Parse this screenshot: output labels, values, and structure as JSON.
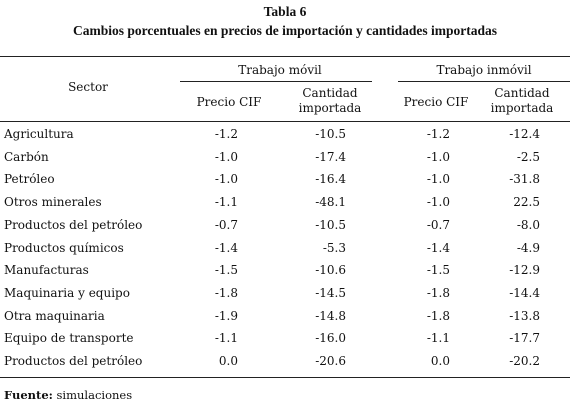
{
  "table": {
    "title": "Tabla 6",
    "subtitle": "Cambios porcentuales en precios de importación y cantidades importadas",
    "header": {
      "sector": "Sector",
      "group1": "Trabajo móvil",
      "group2": "Trabajo inmóvil",
      "price": "Precio CIF",
      "qty_line1": "Cantidad",
      "qty_line2": "importada"
    },
    "rows": [
      {
        "sector": "Agricultura",
        "mob_price": "-1.2",
        "mob_qty": "-10.5",
        "imm_price": "-1.2",
        "imm_qty": "-12.4"
      },
      {
        "sector": "Carbón",
        "mob_price": "-1.0",
        "mob_qty": "-17.4",
        "imm_price": "-1.0",
        "imm_qty": "-2.5"
      },
      {
        "sector": "Petróleo",
        "mob_price": "-1.0",
        "mob_qty": "-16.4",
        "imm_price": "-1.0",
        "imm_qty": "-31.8"
      },
      {
        "sector": "Otros minerales",
        "mob_price": "-1.1",
        "mob_qty": "-48.1",
        "imm_price": "-1.0",
        "imm_qty": "22.5"
      },
      {
        "sector": "Productos del petróleo",
        "mob_price": "-0.7",
        "mob_qty": "-10.5",
        "imm_price": "-0.7",
        "imm_qty": "-8.0"
      },
      {
        "sector": "Productos químicos",
        "mob_price": "-1.4",
        "mob_qty": "-5.3",
        "imm_price": "-1.4",
        "imm_qty": "-4.9"
      },
      {
        "sector": "Manufacturas",
        "mob_price": "-1.5",
        "mob_qty": "-10.6",
        "imm_price": "-1.5",
        "imm_qty": "-12.9"
      },
      {
        "sector": "Maquinaria y equipo",
        "mob_price": "-1.8",
        "mob_qty": "-14.5",
        "imm_price": "-1.8",
        "imm_qty": "-14.4"
      },
      {
        "sector": "Otra maquinaria",
        "mob_price": "-1.9",
        "mob_qty": "-14.8",
        "imm_price": "-1.8",
        "imm_qty": "-13.8"
      },
      {
        "sector": "Equipo de transporte",
        "mob_price": "-1.1",
        "mob_qty": "-16.0",
        "imm_price": "-1.1",
        "imm_qty": "-17.7"
      },
      {
        "sector": "Productos del petróleo",
        "mob_price": "0.0",
        "mob_qty": "-20.6",
        "imm_price": "0.0",
        "imm_qty": "-20.2"
      }
    ],
    "source_label": "Fuente:",
    "source_text": " simulaciones"
  }
}
